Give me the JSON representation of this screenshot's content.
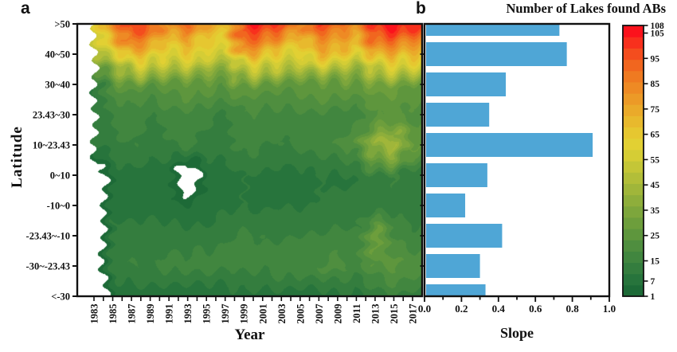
{
  "panel_a": {
    "label": "a",
    "x_axis_label": "Year",
    "y_axis_label": "Latitude"
  },
  "panel_b": {
    "label": "b",
    "title": "Number of Lakes found ABs",
    "x_axis_label": "Slope"
  },
  "chart_data": [
    {
      "type": "heatmap",
      "panel": "a",
      "xlabel": "Year",
      "ylabel": "Latitude",
      "x": [
        1983,
        1985,
        1987,
        1989,
        1991,
        1993,
        1995,
        1997,
        1999,
        2001,
        2003,
        2005,
        2007,
        2009,
        2011,
        2013,
        2015,
        2017
      ],
      "x_range": [
        1983,
        2017
      ],
      "x_minor_tick_step_years": 1,
      "y_categories": [
        ">50",
        "40~50",
        "30~40",
        "23.43~30",
        "10~23.43",
        "0~10",
        "-10~0",
        "-23.43~-10",
        "-30~-23.43",
        "<-30"
      ],
      "grid_note": "number of lakes with algal blooms per latitude band per year; null = no data (white)",
      "grid": [
        [
          58,
          85,
          102,
          95,
          80,
          92,
          78,
          72,
          105,
          103,
          97,
          82,
          100,
          95,
          85,
          104,
          107,
          102
        ],
        [
          45,
          55,
          75,
          68,
          58,
          64,
          56,
          52,
          78,
          72,
          62,
          58,
          70,
          66,
          58,
          74,
          76,
          70
        ],
        [
          8,
          22,
          26,
          24,
          26,
          28,
          26,
          24,
          28,
          27,
          26,
          26,
          28,
          27,
          26,
          30,
          31,
          28
        ],
        [
          12,
          15,
          17,
          14,
          16,
          17,
          15,
          14,
          19,
          17,
          16,
          17,
          18,
          17,
          17,
          23,
          24,
          20
        ],
        [
          10,
          13,
          15,
          12,
          14,
          15,
          13,
          12,
          17,
          15,
          14,
          15,
          17,
          19,
          23,
          42,
          46,
          28
        ],
        [
          null,
          7,
          8,
          7,
          6,
          null,
          7,
          8,
          10,
          9,
          8,
          9,
          10,
          9,
          10,
          13,
          15,
          11
        ],
        [
          null,
          8,
          7,
          7,
          7,
          5,
          7,
          9,
          10,
          9,
          10,
          9,
          10,
          11,
          10,
          12,
          13,
          11
        ],
        [
          null,
          12,
          12,
          13,
          12,
          13,
          12,
          14,
          15,
          14,
          14,
          15,
          15,
          16,
          15,
          32,
          18,
          16
        ],
        [
          null,
          13,
          15,
          14,
          16,
          15,
          17,
          15,
          17,
          16,
          18,
          17,
          19,
          21,
          18,
          23,
          25,
          21
        ],
        [
          null,
          6,
          6,
          7,
          6,
          7,
          6,
          7,
          8,
          7,
          8,
          7,
          8,
          9,
          8,
          11,
          14,
          12
        ]
      ],
      "no_data_color": "#ffffff",
      "colorbar": {
        "min": 1,
        "max": 108,
        "tick_values": [
          108,
          105,
          95,
          85,
          75,
          65,
          55,
          45,
          35,
          25,
          15,
          7,
          1
        ],
        "palette": [
          "#1d6a37",
          "#27743c",
          "#347d3e",
          "#41863f",
          "#4f8e3f",
          "#5e963d",
          "#6d9e3c",
          "#7da63c",
          "#8eae3b",
          "#a0b63a",
          "#b2be39",
          "#c4c637",
          "#d5cd35",
          "#e2d033",
          "#e6c730",
          "#e8b92d",
          "#eaaa2a",
          "#ec9a27",
          "#ee8a24",
          "#ef7a21",
          "#f1661f",
          "#f44d1e",
          "#f8301d",
          "#fb121c"
        ]
      }
    },
    {
      "type": "bar",
      "panel": "b",
      "orientation": "horizontal",
      "title": "Number of Lakes found ABs",
      "xlabel": "Slope",
      "categories": [
        ">50",
        "40~50",
        "30~40",
        "23.43~30",
        "10~23.43",
        "0~10",
        "-10~0",
        "-23.43~-10",
        "-30~-23.43",
        "<-30"
      ],
      "values": [
        0.73,
        0.77,
        0.44,
        0.35,
        0.91,
        0.34,
        0.22,
        0.42,
        0.3,
        0.33
      ],
      "xlim": [
        0,
        1.0
      ],
      "x_tick_labels": [
        "0.0",
        "0.2",
        "0.4",
        "0.6",
        "0.8",
        "1.0"
      ],
      "x_minor_tick_step": 0.1,
      "bar_color": "#4fa6d6",
      "grid": false,
      "legend": false
    }
  ]
}
